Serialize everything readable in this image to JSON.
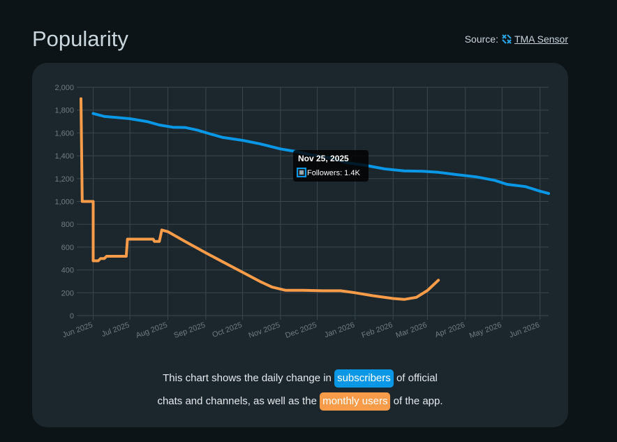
{
  "header": {
    "title": "Popularity",
    "source_label": "Source:",
    "source_link": "TMA Sensor",
    "source_icon": "tma-sensor-logo-icon"
  },
  "caption": {
    "line1_before": "This chart shows the daily change in",
    "line1_pill": "subscribers",
    "line1_after": "of official",
    "line2_before": "chats and channels, as well as the",
    "line2_pill": "monthly users",
    "line2_after": "of the app."
  },
  "tooltip": {
    "date": "Nov 25, 2025",
    "label": "Followers: 1.4K"
  },
  "colors": {
    "followers": "#0a97e6",
    "monthly_users": "#f89c4a",
    "grid": "#3a474e",
    "tick": "#6f7c83"
  },
  "chart_data": {
    "type": "line",
    "x_axis": {
      "ticks": [
        "Jun 2025",
        "Jul 2025",
        "Aug 2025",
        "Sep 2025",
        "Oct 2025",
        "Nov 2025",
        "Dec 2025",
        "Jan 2026",
        "Feb 2026",
        "Mar 2026",
        "Apr 2026",
        "May 2026",
        "Jun 2026"
      ],
      "range": [
        "2025-05-22",
        "2026-06-08"
      ]
    },
    "y_axis": {
      "ticks": [
        "0",
        "200",
        "400",
        "600",
        "800",
        "1,000",
        "1,200",
        "1,400",
        "1,600",
        "1,800",
        "2,000"
      ],
      "ylim": [
        0,
        2000
      ]
    },
    "grid": true,
    "series": [
      {
        "name": "Followers",
        "color": "#0a97e6",
        "points": [
          [
            "2025-06-01",
            1770
          ],
          [
            "2025-06-10",
            1745
          ],
          [
            "2025-06-20",
            1735
          ],
          [
            "2025-07-01",
            1725
          ],
          [
            "2025-07-15",
            1700
          ],
          [
            "2025-07-25",
            1670
          ],
          [
            "2025-08-05",
            1650
          ],
          [
            "2025-08-15",
            1648
          ],
          [
            "2025-08-25",
            1625
          ],
          [
            "2025-09-05",
            1590
          ],
          [
            "2025-09-15",
            1560
          ],
          [
            "2025-10-01",
            1535
          ],
          [
            "2025-10-15",
            1505
          ],
          [
            "2025-11-01",
            1460
          ],
          [
            "2025-11-15",
            1435
          ],
          [
            "2025-11-25",
            1410
          ],
          [
            "2025-12-10",
            1385
          ],
          [
            "2025-12-25",
            1340
          ],
          [
            "2026-01-10",
            1315
          ],
          [
            "2026-01-25",
            1285
          ],
          [
            "2026-02-10",
            1268
          ],
          [
            "2026-02-25",
            1265
          ],
          [
            "2026-03-10",
            1255
          ],
          [
            "2026-03-25",
            1235
          ],
          [
            "2026-04-10",
            1215
          ],
          [
            "2026-04-25",
            1185
          ],
          [
            "2026-05-05",
            1150
          ],
          [
            "2026-05-20",
            1130
          ],
          [
            "2026-06-01",
            1090
          ],
          [
            "2026-06-08",
            1070
          ]
        ]
      },
      {
        "name": "Monthly users",
        "color": "#f89c4a",
        "points": [
          [
            "2025-05-22",
            1900
          ],
          [
            "2025-05-23",
            1000
          ],
          [
            "2025-05-28",
            1000
          ],
          [
            "2025-06-01",
            1000
          ],
          [
            "2025-06-01",
            480
          ],
          [
            "2025-06-05",
            480
          ],
          [
            "2025-06-07",
            500
          ],
          [
            "2025-06-10",
            500
          ],
          [
            "2025-06-12",
            520
          ],
          [
            "2025-06-20",
            520
          ],
          [
            "2025-06-28",
            520
          ],
          [
            "2025-06-29",
            670
          ],
          [
            "2025-07-15",
            670
          ],
          [
            "2025-07-20",
            670
          ],
          [
            "2025-07-21",
            650
          ],
          [
            "2025-07-25",
            650
          ],
          [
            "2025-07-27",
            750
          ],
          [
            "2025-08-01",
            735
          ],
          [
            "2025-08-15",
            650
          ],
          [
            "2025-09-01",
            550
          ],
          [
            "2025-09-15",
            470
          ],
          [
            "2025-10-01",
            380
          ],
          [
            "2025-10-15",
            300
          ],
          [
            "2025-10-25",
            250
          ],
          [
            "2025-11-05",
            222
          ],
          [
            "2025-11-20",
            222
          ],
          [
            "2025-12-05",
            218
          ],
          [
            "2025-12-20",
            218
          ],
          [
            "2026-01-01",
            200
          ],
          [
            "2026-01-15",
            175
          ],
          [
            "2026-02-01",
            150
          ],
          [
            "2026-02-10",
            142
          ],
          [
            "2026-02-20",
            160
          ],
          [
            "2026-03-01",
            220
          ],
          [
            "2026-03-10",
            310
          ]
        ]
      }
    ]
  }
}
